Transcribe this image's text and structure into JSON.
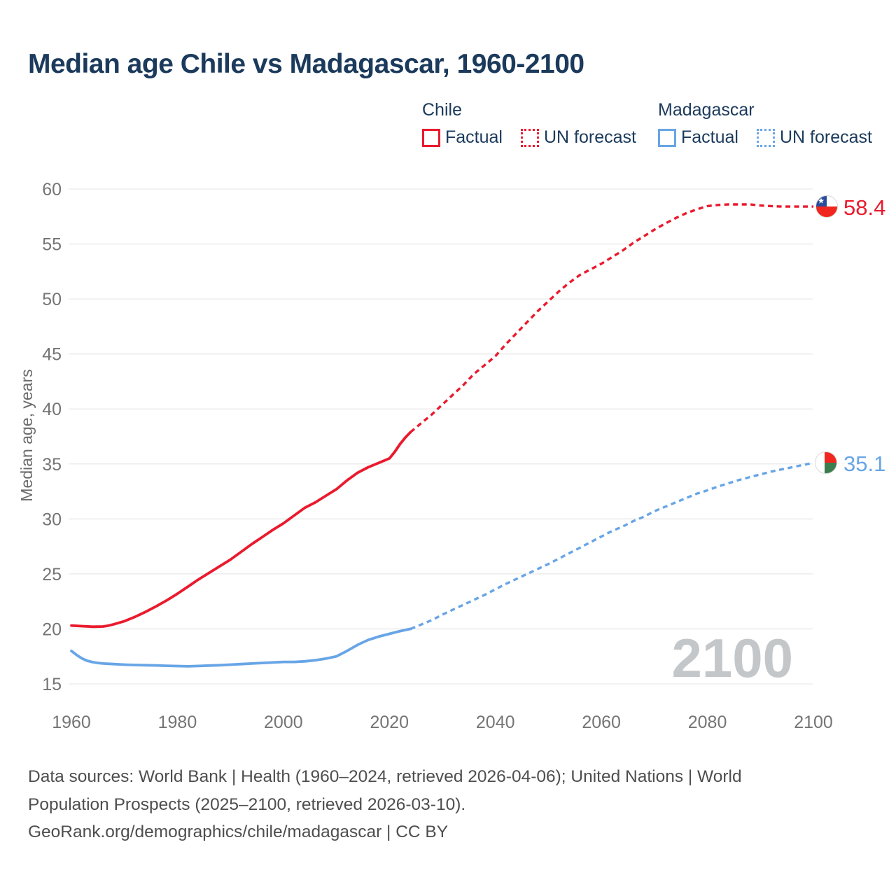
{
  "page": {
    "title": "Median age Chile vs Madagascar, 1960-2100"
  },
  "legend": {
    "chile": {
      "title": "Chile",
      "factual_label": "Factual",
      "forecast_label": "UN forecast"
    },
    "madagascar": {
      "title": "Madagascar",
      "factual_label": "Factual",
      "forecast_label": "UN forecast"
    }
  },
  "colors": {
    "chile_red": "#ea1a2d",
    "madagascar_blue": "#68a5e6",
    "title_navy": "#1b3a5c",
    "axis_gray": "#757575",
    "grid_gray": "#e9e9e9",
    "watermark_gray": "#c4c7ca",
    "footer_gray": "#4e4e4e",
    "chile_flag_blue": "#2a4d9b",
    "flag_red": "#f0261f",
    "madagascar_green": "#3b7d4f"
  },
  "chart_data": {
    "type": "line",
    "title": "Median age Chile vs Madagascar, 1960-2100",
    "xlabel": "",
    "ylabel": "Median age, years",
    "xlim": [
      1960,
      2110
    ],
    "ylim": [
      15,
      60
    ],
    "x_ticks": [
      1960,
      1980,
      2000,
      2020,
      2040,
      2060,
      2080,
      2100
    ],
    "y_ticks": [
      15,
      20,
      25,
      30,
      35,
      40,
      45,
      50,
      55,
      60
    ],
    "grid": "horizontal-only",
    "legend_position": "top-right",
    "watermark": "2100",
    "end_labels": {
      "chile": "58.4",
      "madagascar": "35.1"
    },
    "series": [
      {
        "name": "Chile Factual",
        "style": "solid",
        "color_key": "chile_red",
        "points": [
          [
            1960,
            20.3
          ],
          [
            1962,
            20.25
          ],
          [
            1964,
            20.2
          ],
          [
            1966,
            20.22
          ],
          [
            1967,
            20.3
          ],
          [
            1968,
            20.42
          ],
          [
            1970,
            20.7
          ],
          [
            1972,
            21.1
          ],
          [
            1974,
            21.55
          ],
          [
            1976,
            22.05
          ],
          [
            1978,
            22.6
          ],
          [
            1980,
            23.2
          ],
          [
            1982,
            23.85
          ],
          [
            1984,
            24.5
          ],
          [
            1986,
            25.1
          ],
          [
            1988,
            25.7
          ],
          [
            1990,
            26.3
          ],
          [
            1992,
            27.0
          ],
          [
            1994,
            27.7
          ],
          [
            1996,
            28.35
          ],
          [
            1998,
            29.0
          ],
          [
            2000,
            29.6
          ],
          [
            2002,
            30.3
          ],
          [
            2004,
            31.0
          ],
          [
            2006,
            31.5
          ],
          [
            2008,
            32.1
          ],
          [
            2010,
            32.7
          ],
          [
            2012,
            33.5
          ],
          [
            2014,
            34.2
          ],
          [
            2016,
            34.7
          ],
          [
            2018,
            35.1
          ],
          [
            2020,
            35.5
          ],
          [
            2021,
            36.1
          ],
          [
            2022,
            36.8
          ],
          [
            2023,
            37.4
          ],
          [
            2024,
            37.9
          ]
        ]
      },
      {
        "name": "Chile UN forecast",
        "style": "dashed",
        "color_key": "chile_red",
        "points": [
          [
            2024,
            37.9
          ],
          [
            2026,
            38.7
          ],
          [
            2028,
            39.5
          ],
          [
            2030,
            40.4
          ],
          [
            2032,
            41.3
          ],
          [
            2034,
            42.2
          ],
          [
            2036,
            43.2
          ],
          [
            2038,
            44.0
          ],
          [
            2040,
            44.8
          ],
          [
            2042,
            45.9
          ],
          [
            2044,
            46.9
          ],
          [
            2046,
            47.9
          ],
          [
            2048,
            48.9
          ],
          [
            2050,
            49.8
          ],
          [
            2052,
            50.7
          ],
          [
            2054,
            51.5
          ],
          [
            2056,
            52.2
          ],
          [
            2058,
            52.7
          ],
          [
            2060,
            53.2
          ],
          [
            2062,
            53.8
          ],
          [
            2064,
            54.4
          ],
          [
            2066,
            55.1
          ],
          [
            2068,
            55.7
          ],
          [
            2070,
            56.3
          ],
          [
            2072,
            56.85
          ],
          [
            2074,
            57.35
          ],
          [
            2076,
            57.8
          ],
          [
            2078,
            58.15
          ],
          [
            2080,
            58.45
          ],
          [
            2082,
            58.55
          ],
          [
            2084,
            58.6
          ],
          [
            2086,
            58.6
          ],
          [
            2088,
            58.6
          ],
          [
            2090,
            58.5
          ],
          [
            2092,
            58.45
          ],
          [
            2094,
            58.4
          ],
          [
            2096,
            58.4
          ],
          [
            2098,
            58.4
          ],
          [
            2100,
            58.4
          ]
        ]
      },
      {
        "name": "Madagascar Factual",
        "style": "solid",
        "color_key": "madagascar_blue",
        "points": [
          [
            1960,
            18.0
          ],
          [
            1961,
            17.62
          ],
          [
            1962,
            17.32
          ],
          [
            1963,
            17.1
          ],
          [
            1964,
            16.98
          ],
          [
            1965,
            16.9
          ],
          [
            1966,
            16.85
          ],
          [
            1968,
            16.8
          ],
          [
            1970,
            16.75
          ],
          [
            1972,
            16.72
          ],
          [
            1974,
            16.7
          ],
          [
            1976,
            16.68
          ],
          [
            1978,
            16.65
          ],
          [
            1980,
            16.62
          ],
          [
            1982,
            16.6
          ],
          [
            1984,
            16.63
          ],
          [
            1986,
            16.67
          ],
          [
            1988,
            16.7
          ],
          [
            1990,
            16.75
          ],
          [
            1992,
            16.8
          ],
          [
            1994,
            16.85
          ],
          [
            1996,
            16.9
          ],
          [
            1998,
            16.95
          ],
          [
            2000,
            17.0
          ],
          [
            2002,
            17.0
          ],
          [
            2004,
            17.05
          ],
          [
            2006,
            17.15
          ],
          [
            2008,
            17.3
          ],
          [
            2010,
            17.5
          ],
          [
            2012,
            18.0
          ],
          [
            2014,
            18.55
          ],
          [
            2016,
            19.0
          ],
          [
            2018,
            19.3
          ],
          [
            2020,
            19.55
          ],
          [
            2022,
            19.8
          ],
          [
            2024,
            20.0
          ]
        ]
      },
      {
        "name": "Madagascar UN forecast",
        "style": "dashed",
        "color_key": "madagascar_blue",
        "points": [
          [
            2024,
            20.0
          ],
          [
            2026,
            20.4
          ],
          [
            2028,
            20.8
          ],
          [
            2030,
            21.3
          ],
          [
            2032,
            21.75
          ],
          [
            2034,
            22.2
          ],
          [
            2036,
            22.65
          ],
          [
            2038,
            23.1
          ],
          [
            2040,
            23.6
          ],
          [
            2042,
            24.1
          ],
          [
            2044,
            24.55
          ],
          [
            2046,
            25.0
          ],
          [
            2048,
            25.45
          ],
          [
            2050,
            25.9
          ],
          [
            2052,
            26.4
          ],
          [
            2054,
            26.9
          ],
          [
            2056,
            27.4
          ],
          [
            2058,
            27.9
          ],
          [
            2060,
            28.4
          ],
          [
            2062,
            28.9
          ],
          [
            2064,
            29.3
          ],
          [
            2066,
            29.8
          ],
          [
            2068,
            30.2
          ],
          [
            2070,
            30.7
          ],
          [
            2072,
            31.1
          ],
          [
            2074,
            31.5
          ],
          [
            2076,
            31.9
          ],
          [
            2078,
            32.3
          ],
          [
            2080,
            32.6
          ],
          [
            2082,
            32.95
          ],
          [
            2084,
            33.25
          ],
          [
            2086,
            33.55
          ],
          [
            2088,
            33.8
          ],
          [
            2090,
            34.05
          ],
          [
            2092,
            34.3
          ],
          [
            2094,
            34.5
          ],
          [
            2096,
            34.7
          ],
          [
            2098,
            34.9
          ],
          [
            2100,
            35.1
          ]
        ]
      }
    ]
  },
  "footer": {
    "line1": "Data sources: World Bank | Health (1960–2024, retrieved 2026-04-06); United Nations | World",
    "line2": "Population Prospects (2025–2100, retrieved 2026-03-10).",
    "line3": "GeoRank.org/demographics/chile/madagascar | CC BY"
  }
}
